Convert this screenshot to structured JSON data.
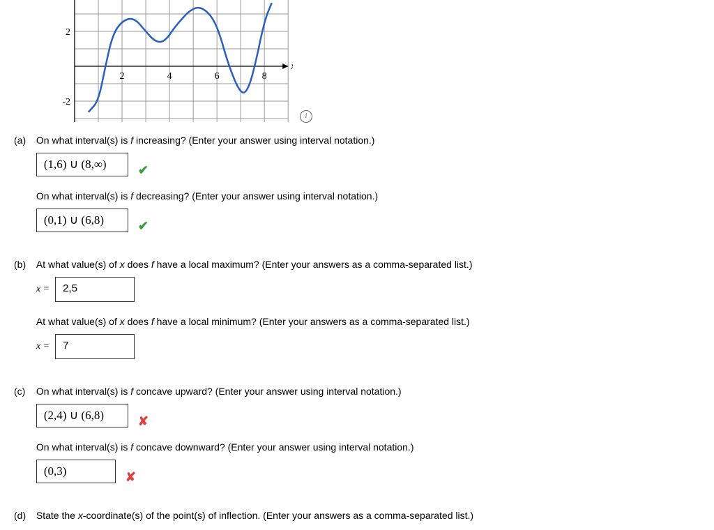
{
  "graph": {
    "type": "line",
    "grid_color": "#999999",
    "axis_color": "#000000",
    "curve_color": "#2b5fbe",
    "curve_width": 2.5,
    "background": "#ffffff",
    "x_ticks": [
      2,
      4,
      6,
      8
    ],
    "y_ticks": [
      -2,
      2
    ],
    "x_label": "x",
    "curve_points": [
      [
        0.6,
        -2.6
      ],
      [
        1,
        -2
      ],
      [
        1.3,
        0
      ],
      [
        1.6,
        1.8
      ],
      [
        2,
        2.6
      ],
      [
        2.5,
        2.8
      ],
      [
        3,
        2.0
      ],
      [
        3.4,
        1.4
      ],
      [
        3.8,
        1.4
      ],
      [
        4.3,
        2.4
      ],
      [
        5,
        3.4
      ],
      [
        5.5,
        3.3
      ],
      [
        6,
        2.4
      ],
      [
        6.5,
        0
      ],
      [
        7,
        -1.6
      ],
      [
        7.3,
        -1.4
      ],
      [
        7.6,
        0
      ],
      [
        8,
        2.6
      ],
      [
        8.3,
        3.6
      ]
    ]
  },
  "parts": {
    "a": {
      "label": "(a)",
      "q1": "On what interval(s) is f increasing? (Enter your answer using interval notation.)",
      "a1": "(1,6) ∪ (8,∞)",
      "mark1": "check",
      "q2": "On what interval(s) is f decreasing? (Enter your answer using interval notation.)",
      "a2": "(0,1) ∪ (6,8)",
      "mark2": "check"
    },
    "b": {
      "label": "(b)",
      "q1": "At what value(s) of x does f have a local maximum? (Enter your answers as a comma-separated list.)",
      "a1": "2,5",
      "q2": "At what value(s) of x does f have a local minimum? (Enter your answers as a comma-separated list.)",
      "a2": "7"
    },
    "c": {
      "label": "(c)",
      "q1": "On what interval(s) is f concave upward? (Enter your answer using interval notation.)",
      "a1": "(2,4) ∪ (6,8)",
      "mark1": "cross",
      "q2": "On what interval(s) is f concave downward? (Enter your answer using interval notation.)",
      "a2": "(0,3)",
      "mark2": "cross"
    },
    "d": {
      "label": "(d)",
      "q1": "State the x-coordinate(s) of the point(s) of inflection. (Enter your answers as a comma-separated list.)"
    }
  },
  "xeq": "x ="
}
